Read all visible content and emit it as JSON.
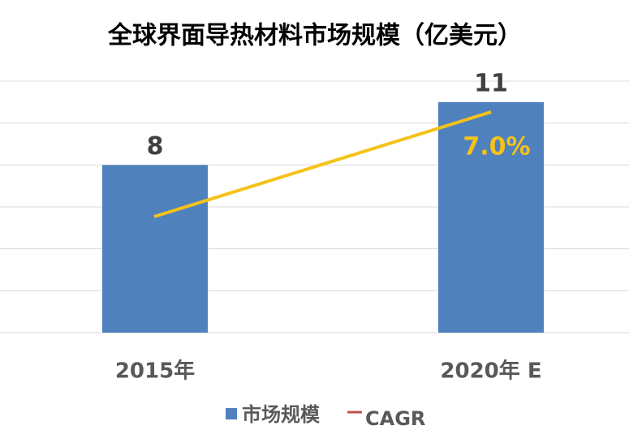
{
  "chart_data": {
    "type": "bar",
    "title": "全球界面导热材料市场规模（亿美元）",
    "categories": [
      "2015年",
      "2020年 E"
    ],
    "series": [
      {
        "name": "市场规模",
        "color": "#4f81bd",
        "values": [
          8,
          11
        ]
      }
    ],
    "ylim": [
      0,
      12
    ],
    "yticks": [
      0,
      2,
      4,
      6,
      8,
      10,
      12
    ],
    "grid": true,
    "cagr": {
      "name": "CAGR",
      "legend_color": "#c0504d",
      "line_color": "#f5c21a",
      "label": "7.0%"
    }
  }
}
